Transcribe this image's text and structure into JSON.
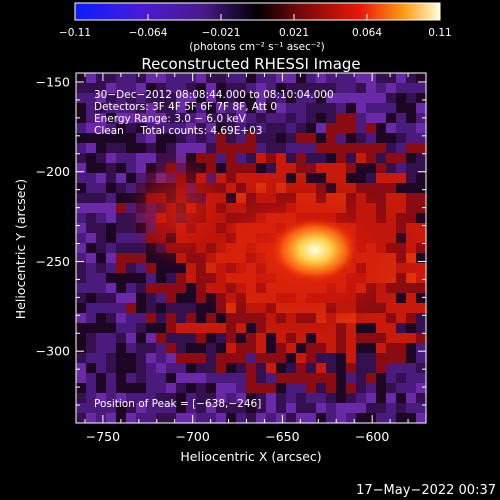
{
  "chart_data": {
    "type": "heatmap",
    "title": "Reconstructed RHESSI Image",
    "xlabel": "Heliocentric X (arcsec)",
    "ylabel": "Heliocentric Y (arcsec)",
    "xlim": [
      -765,
      -570
    ],
    "ylim": [
      -340,
      -145
    ],
    "x_ticks": [
      -750,
      -700,
      -650,
      -600
    ],
    "y_ticks": [
      -150,
      -200,
      -250,
      -300
    ],
    "x_tick_labels": [
      "−750",
      "−700",
      "−650",
      "−600"
    ],
    "y_tick_labels": [
      "−150",
      "−200",
      "−250",
      "−300"
    ],
    "colorbar": {
      "min": -0.11,
      "max": 0.11,
      "tick_labels": [
        "−0.11",
        "−0.064",
        "−0.021",
        "0.021",
        "0.064",
        "0.11"
      ],
      "unit_label": "(photons cm⁻² s⁻¹ asec⁻²)"
    },
    "annotations": {
      "time_range": "30−Dec−2012 08:08:44.000 to 08:10:04.000",
      "detectors": "Detectors: 3F 4F 5F 6F 7F 8F, Att 0",
      "energy": "Energy Range: 3.0 − 6.0 keV",
      "clean": "Clean     Total counts: 4.69E+03",
      "peak": "Position of Peak = [−638,−246]"
    },
    "peak": {
      "x": -638,
      "y": -246
    },
    "grid": false
  },
  "footer": {
    "timestamp": "17−May−2022 00:37"
  }
}
